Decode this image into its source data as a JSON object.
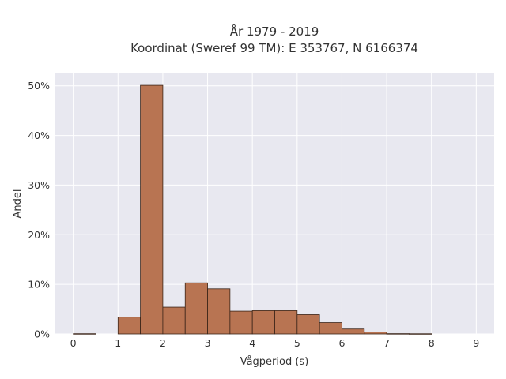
{
  "chart_data": {
    "type": "bar",
    "title": "År 1979 - 2019",
    "subtitle": "Koordinat (Sweref 99 TM): E 353767, N 6166374",
    "xlabel": "Vågperiod (s)",
    "ylabel": "Andel",
    "xlim": [
      -0.4,
      9.4
    ],
    "ylim": [
      0,
      0.525
    ],
    "x_ticks": [
      0,
      1,
      2,
      3,
      4,
      5,
      6,
      7,
      8,
      9
    ],
    "x_tick_labels": [
      "0",
      "1",
      "2",
      "3",
      "4",
      "5",
      "6",
      "7",
      "8",
      "9"
    ],
    "y_ticks": [
      0,
      0.1,
      0.2,
      0.3,
      0.4,
      0.5
    ],
    "y_tick_labels": [
      "0%",
      "10%",
      "20%",
      "30%",
      "40%",
      "50%"
    ],
    "bin_width": 0.5,
    "bins": [
      {
        "start": 0.0,
        "value": 0.0005
      },
      {
        "start": 1.0,
        "value": 0.034
      },
      {
        "start": 1.5,
        "value": 0.501
      },
      {
        "start": 2.0,
        "value": 0.054
      },
      {
        "start": 2.5,
        "value": 0.103
      },
      {
        "start": 3.0,
        "value": 0.091
      },
      {
        "start": 3.5,
        "value": 0.046
      },
      {
        "start": 4.0,
        "value": 0.047
      },
      {
        "start": 4.5,
        "value": 0.047
      },
      {
        "start": 5.0,
        "value": 0.039
      },
      {
        "start": 5.5,
        "value": 0.023
      },
      {
        "start": 6.0,
        "value": 0.01
      },
      {
        "start": 6.5,
        "value": 0.004
      },
      {
        "start": 7.0,
        "value": 0.0006
      },
      {
        "start": 7.5,
        "value": 0.0004
      }
    ],
    "grid": true,
    "colors": {
      "bar_fill": "#b87452",
      "bar_stroke": "#3a2418",
      "plot_background": "#e8e8f0",
      "grid": "#ffffff"
    }
  }
}
